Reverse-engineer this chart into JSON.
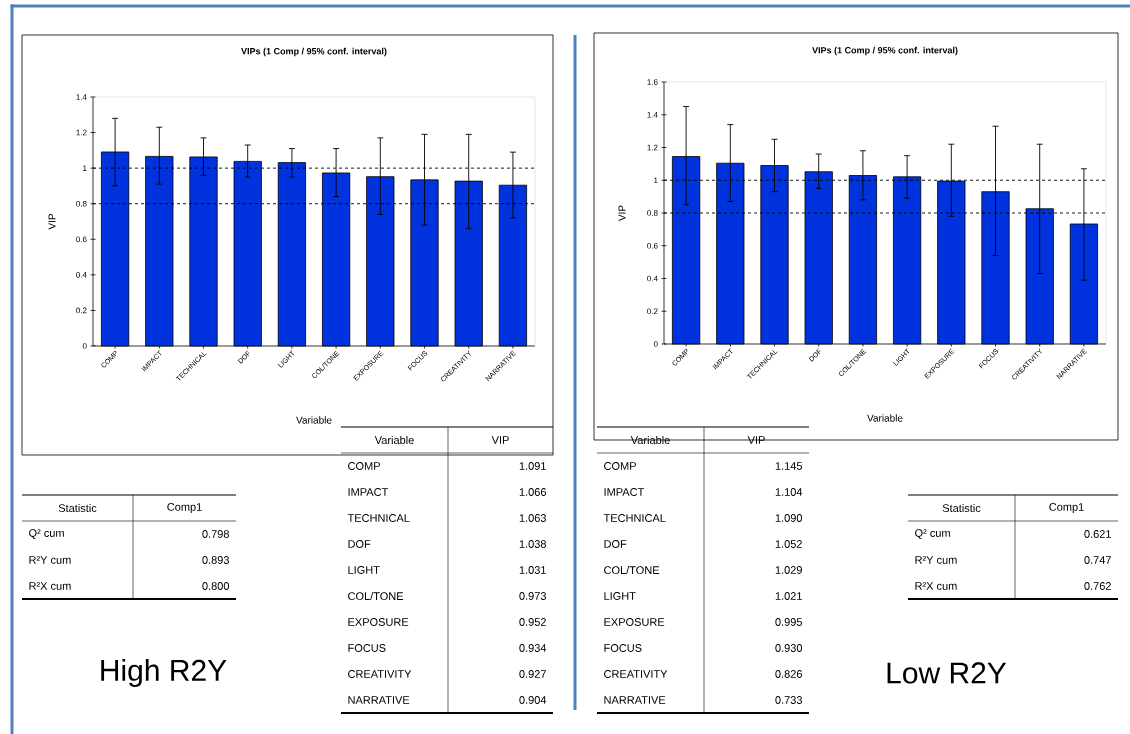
{
  "chart_data": [
    {
      "type": "bar",
      "title": "VIPs (1 Comp / 95% conf. interval)",
      "xlabel": "Variable",
      "ylabel": "VIP",
      "categories": [
        "COMP",
        "IMPACT",
        "TECHNICAL",
        "DOF",
        "LIGHT",
        "COL/TONE",
        "EXPOSURE",
        "FOCUS",
        "CREATIVITY",
        "NARRATIVE"
      ],
      "values": [
        1.091,
        1.066,
        1.063,
        1.038,
        1.031,
        0.973,
        0.952,
        0.934,
        0.927,
        0.904
      ],
      "errors": [
        [
          0.9,
          1.28
        ],
        [
          0.91,
          1.23
        ],
        [
          0.96,
          1.17
        ],
        [
          0.95,
          1.13
        ],
        [
          0.95,
          1.11
        ],
        [
          0.84,
          1.11
        ],
        [
          0.74,
          1.17
        ],
        [
          0.68,
          1.19
        ],
        [
          0.66,
          1.19
        ],
        [
          0.72,
          1.09
        ]
      ],
      "color": "#0033dd",
      "ylim": [
        0,
        1.4
      ],
      "yticks": [
        0,
        0.2,
        0.4,
        0.6,
        0.8,
        1,
        1.2,
        1.4
      ],
      "ref_lines": [
        {
          "axis": "y",
          "value": 1,
          "color": "#000000",
          "line_style": "dashed"
        },
        {
          "axis": "y",
          "value": 0.8,
          "color": "#000000",
          "line_style": "dashed"
        }
      ],
      "annotations": [
        "Variable",
        "VIP",
        "Statistic",
        "Comp1",
        "Q² cum",
        "0.798",
        "R²Y cum",
        "0.893",
        "R²X cum",
        "0.800",
        "High R2Y",
        "1.091",
        "1.066",
        "1.063",
        "1.038",
        "1.031",
        "0.973",
        "0.952",
        "0.934",
        "0.927",
        "0.904"
      ]
    },
    {
      "type": "bar",
      "title": "VIPs (1 Comp / 95% conf. interval)",
      "xlabel": "Variable",
      "ylabel": "VIP",
      "categories": [
        "COMP",
        "IMPACT",
        "TECHNICAL",
        "DOF",
        "COL/TONE",
        "LIGHT",
        "EXPOSURE",
        "FOCUS",
        "CREATIVITY",
        "NARRATIVE"
      ],
      "values": [
        1.145,
        1.104,
        1.09,
        1.052,
        1.029,
        1.021,
        0.995,
        0.93,
        0.826,
        0.733
      ],
      "errors": [
        [
          0.85,
          1.45
        ],
        [
          0.87,
          1.34
        ],
        [
          0.93,
          1.25
        ],
        [
          0.95,
          1.16
        ],
        [
          0.88,
          1.18
        ],
        [
          0.89,
          1.15
        ],
        [
          0.78,
          1.22
        ],
        [
          0.54,
          1.33
        ],
        [
          0.43,
          1.22
        ],
        [
          0.39,
          1.07
        ]
      ],
      "color": "#0033dd",
      "ylim": [
        0,
        1.6
      ],
      "yticks": [
        0,
        0.2,
        0.4,
        0.6,
        0.8,
        1,
        1.2,
        1.4,
        1.6
      ],
      "ref_lines": [
        {
          "axis": "y",
          "value": 1,
          "color": "#000000",
          "line_style": "dashed"
        },
        {
          "axis": "y",
          "value": 0.8,
          "color": "#000000",
          "line_style": "dashed"
        }
      ],
      "annotations": [
        "Variable",
        "VIP",
        "Statistic",
        "Comp1",
        "Q² cum",
        "0.621",
        "R²Y cum",
        "0.747",
        "R²X cum",
        "0.762",
        "Low R2Y",
        "1.145",
        "1.104",
        "1.090",
        "1.052",
        "1.029",
        "1.021",
        "0.995",
        "0.930",
        "0.826",
        "0.733"
      ]
    }
  ]
}
